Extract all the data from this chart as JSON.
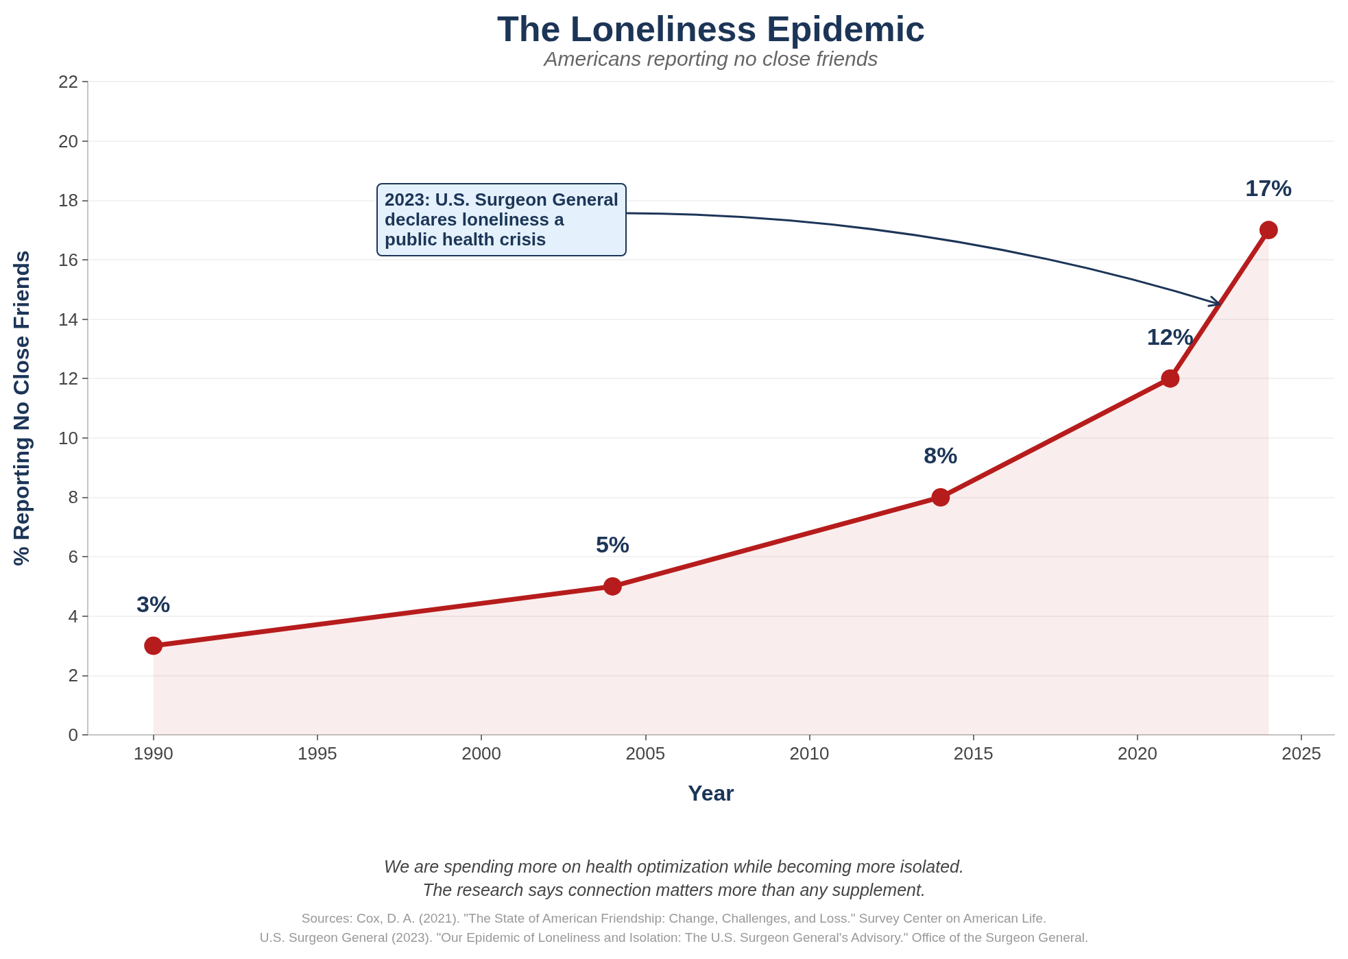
{
  "chart_data": {
    "type": "area",
    "title": "The Loneliness Epidemic",
    "subtitle": "Americans reporting no close friends",
    "xlabel": "Year",
    "ylabel": "% Reporting No Close Friends",
    "x": [
      1990,
      2004,
      2014,
      2021,
      2024
    ],
    "values": [
      3,
      5,
      8,
      12,
      17
    ],
    "value_labels": [
      "3%",
      "5%",
      "8%",
      "12%",
      "17%"
    ],
    "color": "#b71c1c",
    "xlim": [
      1988,
      2026
    ],
    "xticks": [
      1990,
      1995,
      2000,
      2005,
      2010,
      2015,
      2020,
      2025
    ],
    "ylim": [
      0,
      22
    ],
    "yticks": [
      0,
      2,
      4,
      6,
      8,
      10,
      12,
      14,
      16,
      18,
      20,
      22
    ],
    "grid": "y",
    "marker": "circle",
    "line_style": "solid",
    "annotations": [
      {
        "text": "2023: U.S. Surgeon General\ndeclares loneliness a\npublic health crisis",
        "x": 2022.5,
        "y": 14.5
      },
      "We are spending more on health optimization while becoming more isolated.\nThe research says connection matters more than any supplement.",
      "Sources: Cox, D. A. (2021). \"The State of American Friendship: Change, Challenges, and Loss.\" Survey Center on American Life.\nU.S. Surgeon General (2023). \"Our Epidemic of Loneliness and Isolation: The U.S. Surgeon General's Advisory.\" Office of the Surgeon General."
    ]
  }
}
